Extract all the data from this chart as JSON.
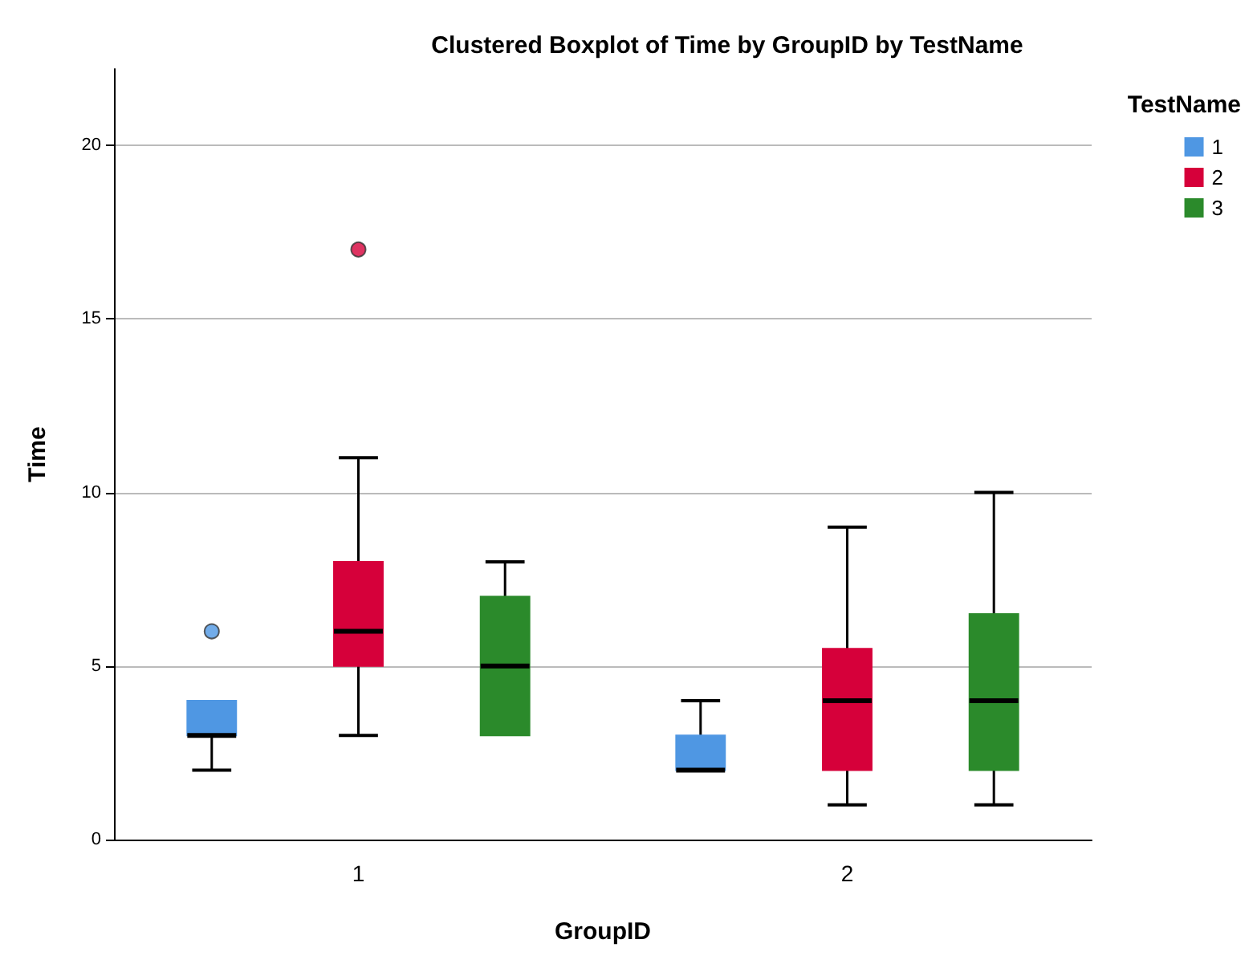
{
  "chart_data": {
    "type": "box",
    "title": "Clustered Boxplot of Time by GroupID by TestName",
    "xlabel": "GroupID",
    "ylabel": "Time",
    "legend_title": "TestName",
    "categories": [
      "1",
      "2"
    ],
    "ylim": [
      0,
      22.2
    ],
    "yticks": [
      0,
      5,
      10,
      15,
      20
    ],
    "grid": "y",
    "legend": "top right",
    "series": [
      {
        "name": "1",
        "color": "#4f97e3",
        "boxes": [
          {
            "low": 2,
            "q1": 3,
            "median": 3,
            "q3": 4,
            "high": 4,
            "outliers": [
              6
            ]
          },
          {
            "low": 2,
            "q1": 2,
            "median": 2,
            "q3": 3,
            "high": 4
          }
        ]
      },
      {
        "name": "2",
        "color": "#d6003a",
        "boxes": [
          {
            "low": 3,
            "q1": 5,
            "median": 6,
            "q3": 8,
            "high": 11,
            "outliers": [
              17
            ]
          },
          {
            "low": 1,
            "q1": 2,
            "median": 4,
            "q3": 5.5,
            "high": 9
          }
        ]
      },
      {
        "name": "3",
        "color": "#2b8a2b",
        "boxes": [
          {
            "low": 3,
            "q1": 3,
            "median": 5,
            "q3": 7,
            "high": 8
          },
          {
            "low": 1,
            "q1": 2,
            "median": 4,
            "q3": 6.5,
            "high": 10
          }
        ]
      }
    ]
  }
}
